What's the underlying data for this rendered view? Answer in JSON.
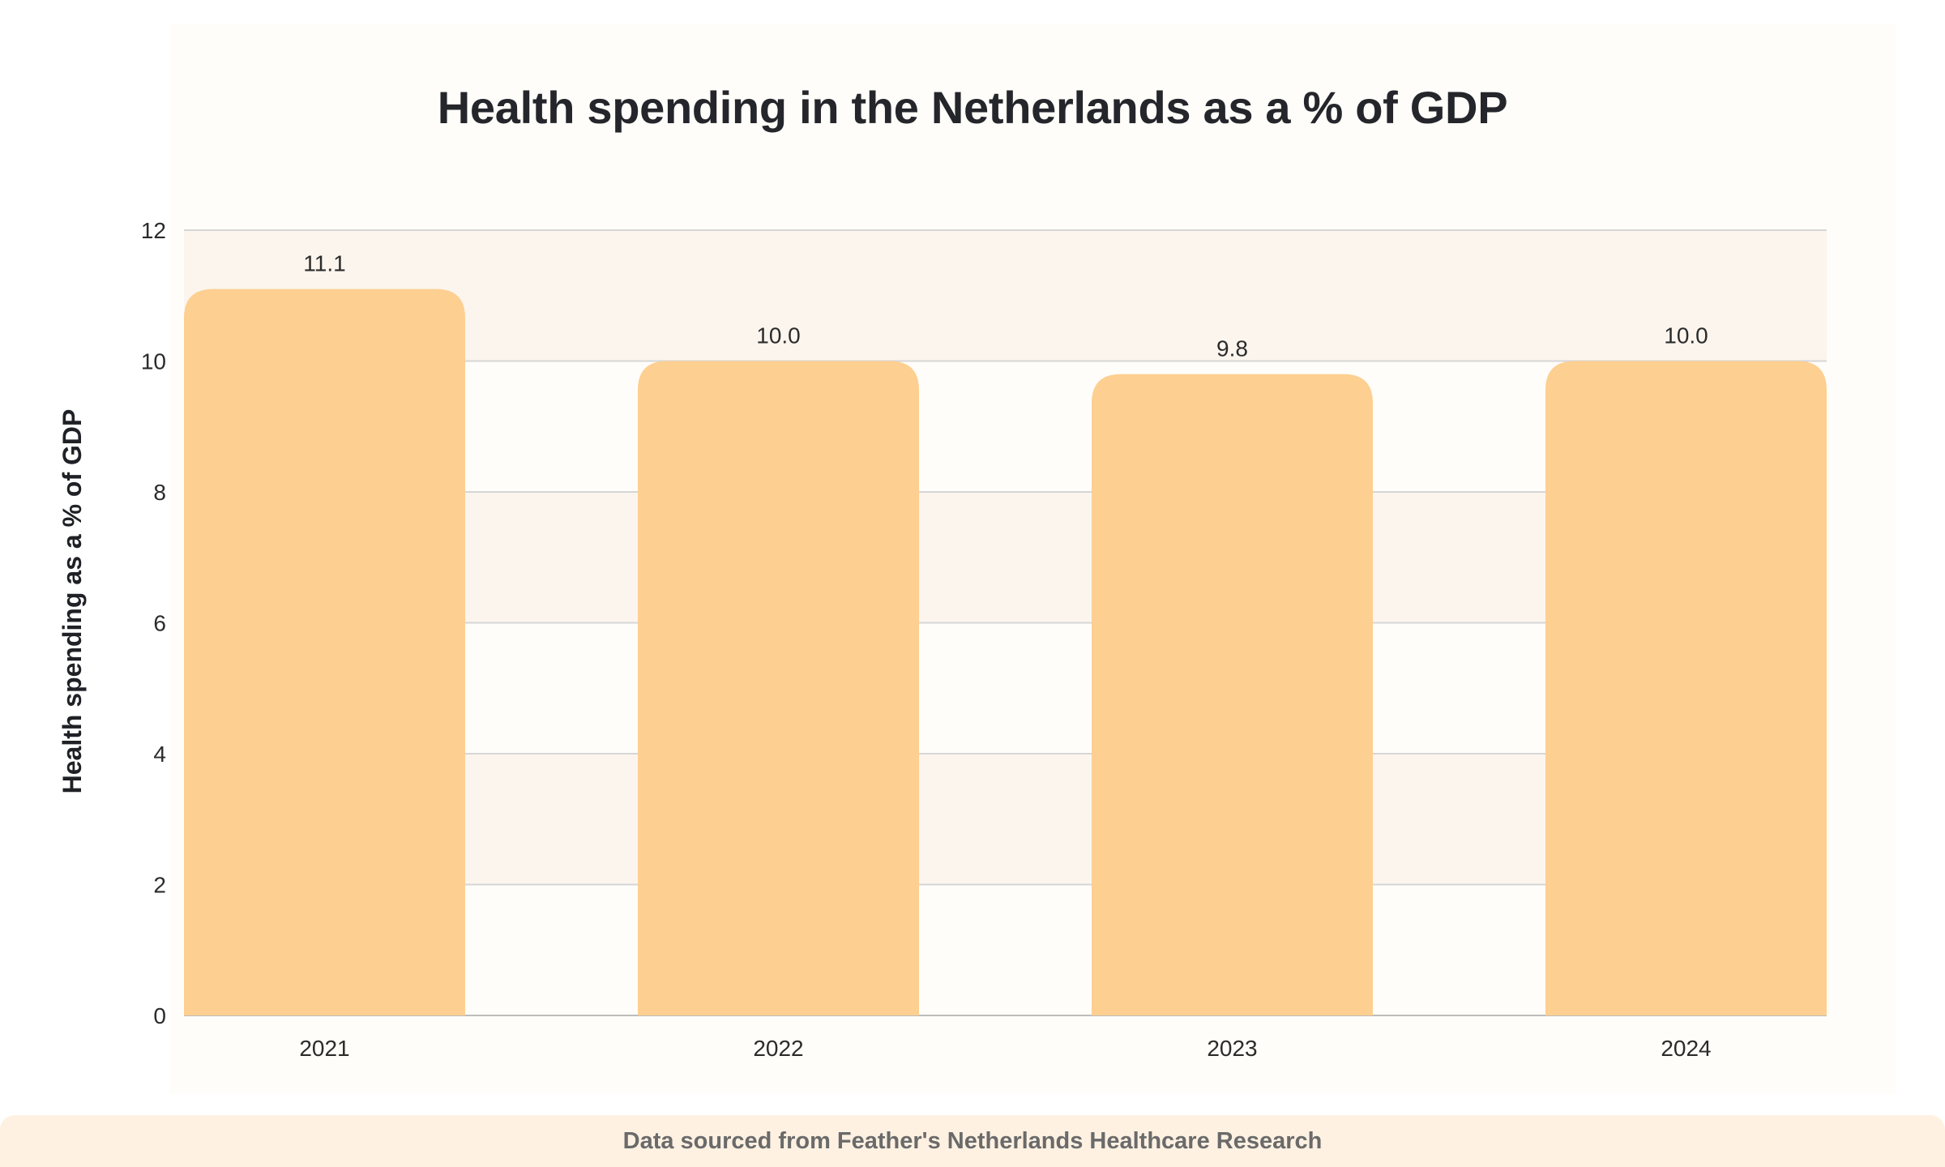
{
  "chart_data": {
    "type": "bar",
    "title": "Health spending in the Netherlands as a % of GDP",
    "ylabel": "Health spending as a % of GDP",
    "xlabel": "",
    "categories": [
      "2021",
      "2022",
      "2023",
      "2024"
    ],
    "values": [
      11.1,
      10.0,
      9.8,
      10.0
    ],
    "data_labels": [
      "11.1",
      "10.0",
      "9.8",
      "10.0"
    ],
    "ylim": [
      0,
      12
    ],
    "yticks": [
      0,
      2,
      4,
      6,
      8,
      10,
      12
    ],
    "grid": true,
    "legend": "none",
    "colors": {
      "bar": "#fdcf90",
      "band": "#fbf5ee",
      "grid": "#d6d6d6",
      "axis": "#bdbdbd"
    }
  },
  "footer": {
    "source_text": "Data sourced from Feather's Netherlands Healthcare Research"
  }
}
